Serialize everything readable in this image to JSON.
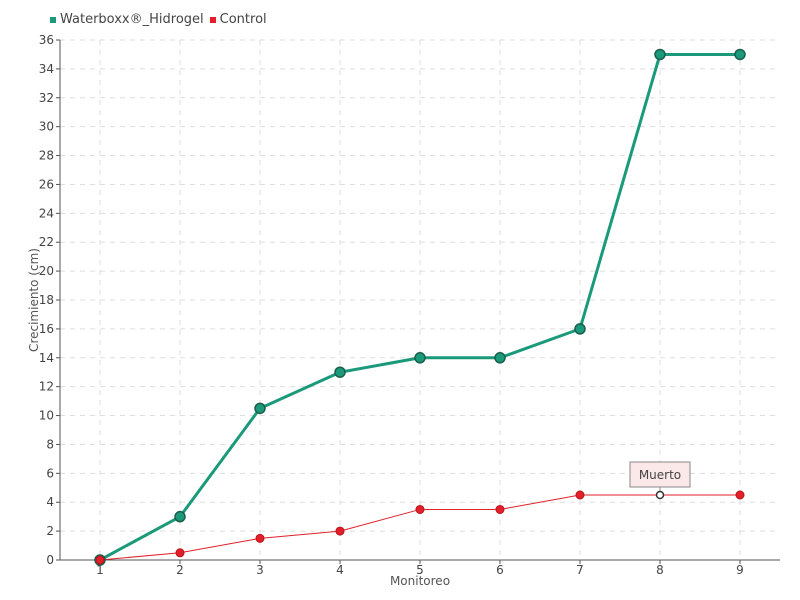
{
  "chart_data": {
    "type": "line",
    "categories": [
      "1",
      "2",
      "3",
      "4",
      "5",
      "6",
      "7",
      "8",
      "9"
    ],
    "series": [
      {
        "name": "Waterboxx®_Hidrogel",
        "color": "#1a9a7a",
        "values": [
          0,
          3,
          10.5,
          13,
          14,
          14,
          16,
          35,
          35
        ]
      },
      {
        "name": "Control",
        "color": "#e0202a",
        "values": [
          0,
          0.5,
          1.5,
          2,
          3.5,
          3.5,
          4.5,
          4.5,
          4.5
        ]
      }
    ],
    "xlabel": "Monitoreo",
    "ylabel": "Crecimiento (cm)",
    "ylim": [
      0,
      36
    ],
    "yticks": [
      "0",
      "2",
      "4",
      "6",
      "8",
      "10",
      "12",
      "14",
      "16",
      "18",
      "20",
      "22",
      "24",
      "26",
      "28",
      "30",
      "32",
      "34",
      "36"
    ],
    "grid": true,
    "legend_position": "top-left",
    "annotation": {
      "text": "Muerto",
      "series": "Control",
      "category": "8"
    }
  }
}
